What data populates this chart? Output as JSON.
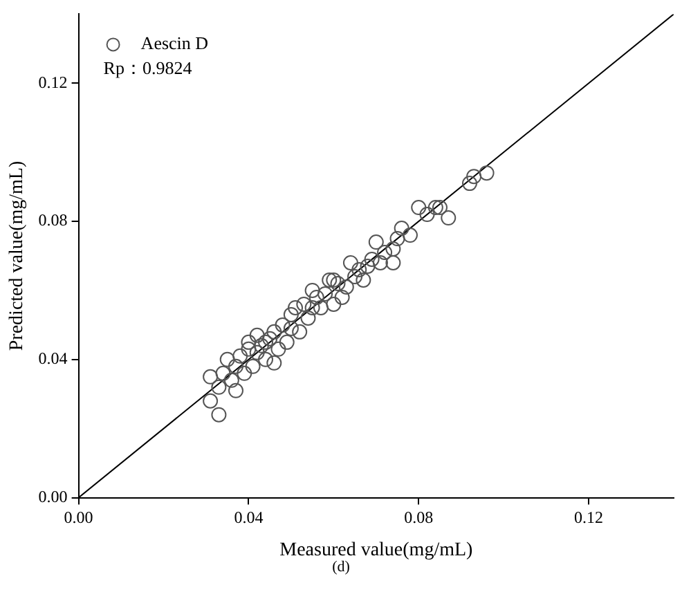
{
  "chart_data": {
    "type": "scatter",
    "xlabel": "Measured value(mg/mL)",
    "ylabel": "Predicted value(mg/mL)",
    "xlim": [
      0,
      0.14
    ],
    "ylim": [
      0,
      0.14
    ],
    "xticks": [
      {
        "value": 0,
        "label": "0.00"
      },
      {
        "value": 0.04,
        "label": "0.04"
      },
      {
        "value": 0.08,
        "label": "0.08"
      },
      {
        "value": 0.12,
        "label": "0.12"
      }
    ],
    "yticks": [
      {
        "value": 0,
        "label": "0.00"
      },
      {
        "value": 0.04,
        "label": "0.04"
      },
      {
        "value": 0.08,
        "label": "0.08"
      },
      {
        "value": 0.12,
        "label": "0.12"
      }
    ],
    "grid": false,
    "legend": "top left",
    "marker": "circle",
    "series": [
      {
        "name": "Aescin D",
        "color": "#555555",
        "x": [
          0.031,
          0.031,
          0.033,
          0.033,
          0.034,
          0.035,
          0.036,
          0.037,
          0.037,
          0.038,
          0.039,
          0.04,
          0.04,
          0.041,
          0.042,
          0.042,
          0.043,
          0.044,
          0.044,
          0.045,
          0.046,
          0.046,
          0.047,
          0.048,
          0.049,
          0.05,
          0.05,
          0.051,
          0.052,
          0.053,
          0.054,
          0.055,
          0.055,
          0.056,
          0.057,
          0.058,
          0.059,
          0.06,
          0.06,
          0.061,
          0.062,
          0.063,
          0.064,
          0.065,
          0.066,
          0.067,
          0.068,
          0.069,
          0.07,
          0.071,
          0.072,
          0.074,
          0.074,
          0.075,
          0.076,
          0.078,
          0.08,
          0.082,
          0.084,
          0.085,
          0.087,
          0.092,
          0.093,
          0.096
        ],
        "values": [
          0.028,
          0.035,
          0.024,
          0.032,
          0.036,
          0.04,
          0.034,
          0.031,
          0.038,
          0.041,
          0.036,
          0.043,
          0.045,
          0.038,
          0.042,
          0.047,
          0.044,
          0.04,
          0.045,
          0.046,
          0.039,
          0.048,
          0.043,
          0.05,
          0.045,
          0.049,
          0.053,
          0.055,
          0.048,
          0.056,
          0.052,
          0.06,
          0.055,
          0.058,
          0.055,
          0.059,
          0.063,
          0.056,
          0.063,
          0.062,
          0.058,
          0.061,
          0.068,
          0.064,
          0.066,
          0.063,
          0.067,
          0.069,
          0.074,
          0.068,
          0.071,
          0.068,
          0.072,
          0.075,
          0.078,
          0.076,
          0.084,
          0.082,
          0.084,
          0.084,
          0.081,
          0.091,
          0.093,
          0.094
        ]
      },
      {
        "type": "line",
        "color": "#000000",
        "x": [
          0,
          0.14
        ],
        "values": [
          0,
          0.14
        ],
        "marker": "none"
      }
    ],
    "annotations": [
      "Rp：0.9824",
      "(d)"
    ]
  }
}
